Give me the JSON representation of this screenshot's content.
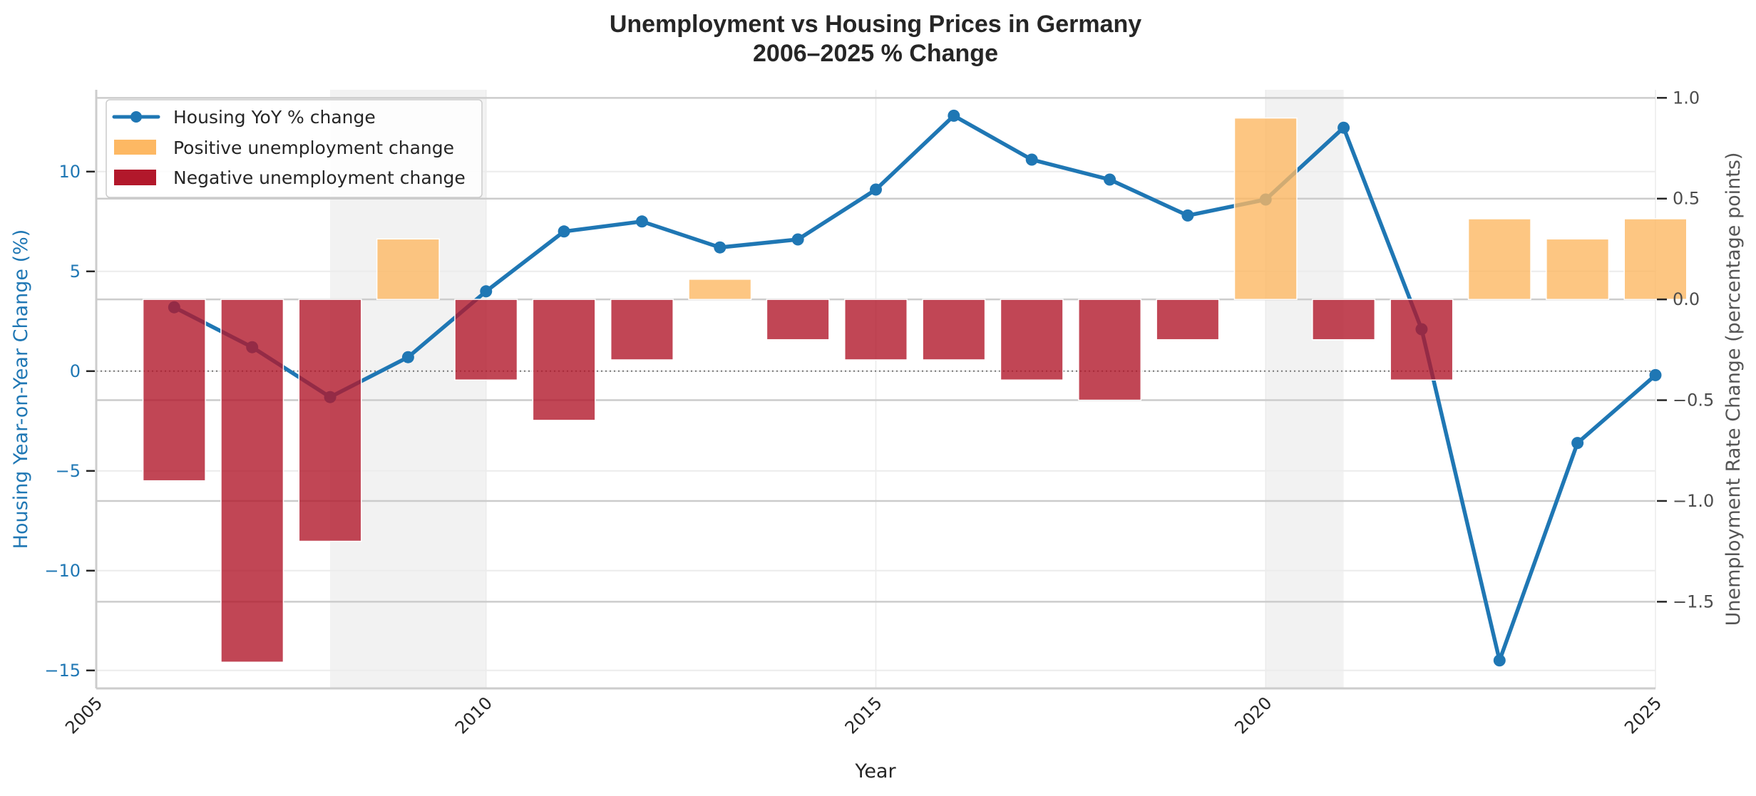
{
  "chart_data": {
    "type": "bar+line",
    "title": "Unemployment vs Housing Prices in Germany",
    "subtitle": "2006–2025 % Change",
    "xlabel": "Year",
    "ylabel_left": "Housing Year-on-Year Change (%)",
    "ylabel_right": "Unemployment Rate Change (percentage points)",
    "x": [
      2006,
      2007,
      2008,
      2009,
      2010,
      2011,
      2012,
      2013,
      2014,
      2015,
      2016,
      2017,
      2018,
      2019,
      2020,
      2021,
      2022,
      2023,
      2024,
      2025
    ],
    "xlim": [
      2005,
      2025
    ],
    "x_ticks": [
      "2005",
      "2010",
      "2015",
      "2020",
      "2025"
    ],
    "x_tick_values": [
      2005,
      2010,
      2015,
      2020,
      2025
    ],
    "ylim_left": [
      -15.9,
      14.1
    ],
    "y_ticks_left": [
      10,
      5,
      0,
      -5,
      -10,
      -15
    ],
    "y_tick_labels_left": [
      "10",
      "5",
      "0",
      "−5",
      "−10",
      "−15"
    ],
    "ylim_right": [
      -1.93,
      1.04
    ],
    "y_ticks_right": [
      1.0,
      0.5,
      0.0,
      -0.5,
      -1.0,
      -1.5
    ],
    "y_tick_labels_right": [
      "1.0",
      "0.5",
      "0.0",
      "−0.5",
      "−1.0",
      "−1.5"
    ],
    "series": [
      {
        "name": "Housing YoY % change",
        "type": "line",
        "axis": "left",
        "color": "#1f77b4",
        "values": [
          3.2,
          1.2,
          -1.3,
          0.7,
          4.0,
          7.0,
          7.5,
          6.2,
          6.6,
          9.1,
          12.8,
          10.6,
          9.6,
          7.8,
          8.6,
          12.2,
          2.1,
          -14.5,
          -3.6,
          -0.2
        ]
      },
      {
        "name": "Unemployment rate change",
        "type": "bar",
        "axis": "right",
        "values": [
          -0.9,
          -1.8,
          -1.2,
          0.3,
          -0.4,
          -0.6,
          -0.3,
          0.1,
          -0.2,
          -0.3,
          -0.3,
          -0.4,
          -0.5,
          -0.2,
          0.9,
          -0.2,
          -0.4,
          0.4,
          0.3,
          0.4
        ]
      }
    ],
    "legend": {
      "position": "upper-left",
      "entries": [
        {
          "label": "Housing YoY % change",
          "kind": "line",
          "color": "#1f77b4"
        },
        {
          "label": "Positive unemployment change",
          "kind": "patch",
          "color": "#fdb863"
        },
        {
          "label": "Negative unemployment change",
          "kind": "patch",
          "color": "#b2182b"
        }
      ]
    },
    "colors": {
      "positive_bar": "#fdb863",
      "negative_bar": "#b2182b",
      "line": "#1f77b4",
      "shading": "#d9d9d9"
    },
    "shaded_periods": [
      {
        "start": 2008,
        "end": 2010
      },
      {
        "start": 2020,
        "end": 2021
      }
    ],
    "zero_reference_line": {
      "axis": "left",
      "value": 0,
      "style": "dotted"
    },
    "grid": true
  }
}
